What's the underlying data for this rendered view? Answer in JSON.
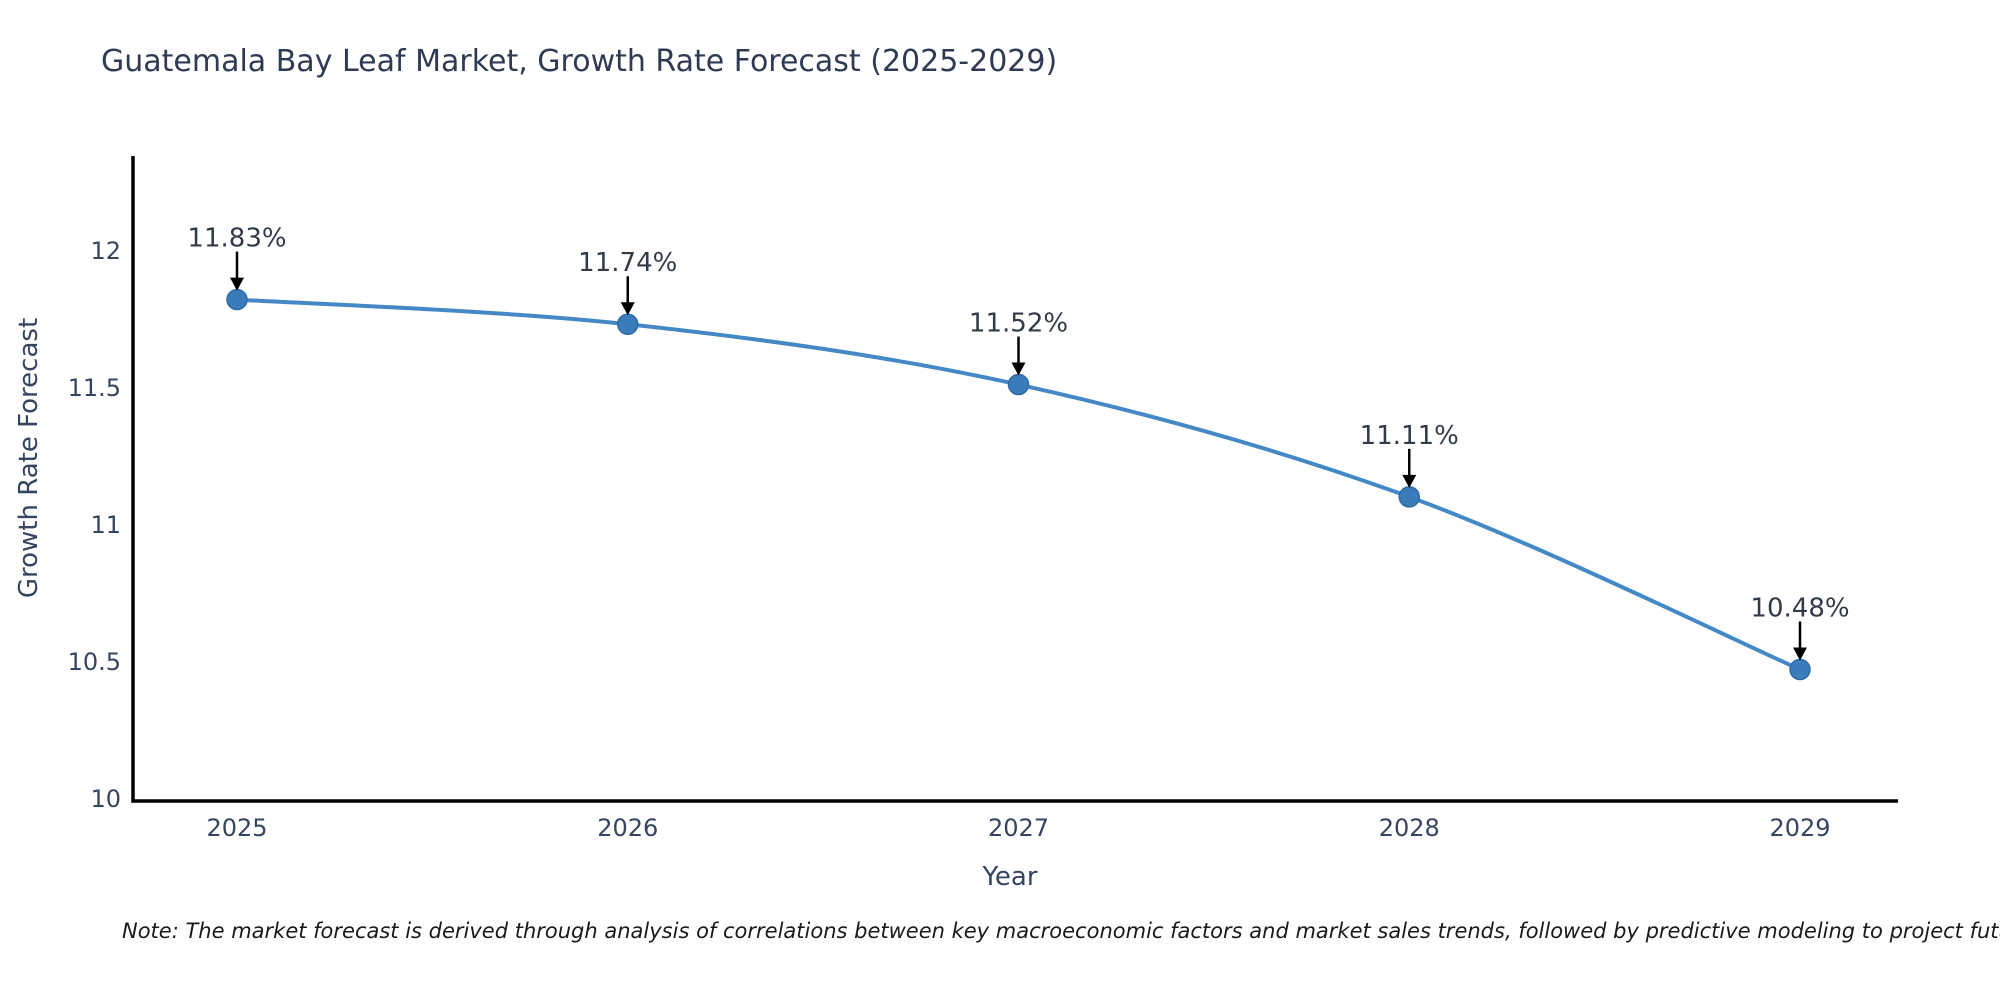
{
  "title": {
    "text": "Guatemala Bay Leaf Market, Growth Rate Forecast (2025-2029)",
    "color": "#2f3b52"
  },
  "note": {
    "text": "Note: The market forecast is derived through analysis of correlations between key macroeconomic factors and market sales trends, followed by predictive modeling to project future sal"
  },
  "chart_data": {
    "type": "line",
    "title": "Guatemala Bay Leaf Market, Growth Rate Forecast (2025-2029)",
    "xlabel": "Year",
    "ylabel": "Growth Rate Forecast",
    "categories": [
      "2025",
      "2026",
      "2027",
      "2028",
      "2029"
    ],
    "values": [
      11.83,
      11.74,
      11.52,
      11.11,
      10.48
    ],
    "point_labels": [
      "11.83%",
      "11.74%",
      "11.52%",
      "11.11%",
      "10.48%"
    ],
    "ytick_values": [
      10,
      10.5,
      11,
      11.5,
      12
    ],
    "ytick_labels": [
      "10",
      "10.5",
      "11",
      "11.5",
      "12"
    ],
    "ylim": [
      10,
      12.35
    ],
    "grid": false,
    "legend": "none",
    "line_color": "#4488c6",
    "marker_color": "#3a7cba",
    "marker_edge_color": "#2e6aa6",
    "axis_color": "#000000",
    "tick_color": "#36455f",
    "annotation_color": "#303a49",
    "annotation_arrow_color": "#000000"
  }
}
